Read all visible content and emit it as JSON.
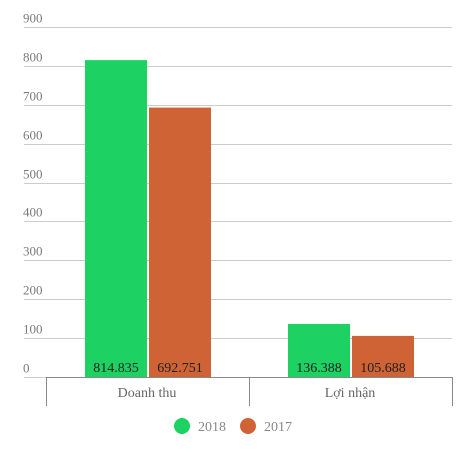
{
  "chart_data": {
    "type": "bar",
    "categories": [
      "Doanh thu",
      "Lợi nhận"
    ],
    "series": [
      {
        "name": "2018",
        "color": "#1dd263",
        "values": [
          814.835,
          136.388
        ],
        "labels": [
          "814.835",
          "136.388"
        ]
      },
      {
        "name": "2017",
        "color": "#cf6335",
        "values": [
          692.751,
          105.688
        ],
        "labels": [
          "692.751",
          "105.688"
        ]
      }
    ],
    "ylim": [
      0,
      900
    ],
    "yticks": [
      0,
      100,
      200,
      300,
      400,
      500,
      600,
      700,
      800,
      900
    ],
    "grid": true,
    "legend": "bottom-center"
  }
}
